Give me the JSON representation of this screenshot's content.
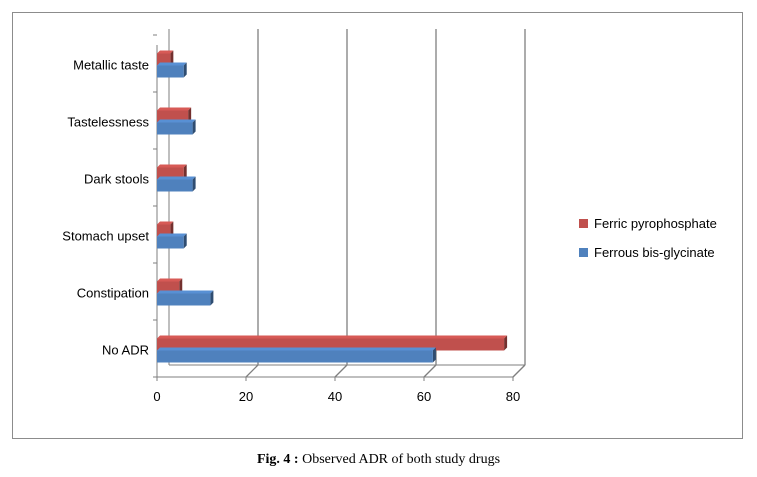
{
  "chart_data": {
    "type": "bar",
    "orientation": "horizontal",
    "style": "3d",
    "categories": [
      "Metallic taste",
      "Tastelessness",
      "Dark stools",
      "Stomach upset",
      "Constipation",
      "No ADR"
    ],
    "series": [
      {
        "name": "Ferric pyrophosphate",
        "color": "#c0504d",
        "values": [
          3,
          7,
          6,
          3,
          5,
          78
        ]
      },
      {
        "name": "Ferrous bis-glycinate",
        "color": "#4f81bd",
        "values": [
          6,
          8,
          8,
          6,
          12,
          62
        ]
      }
    ],
    "xlim": [
      0,
      80
    ],
    "xticks": [
      0,
      20,
      40,
      60,
      80
    ],
    "grid": "vertical",
    "legend_position": "right"
  },
  "caption": {
    "label": "Fig. 4 :",
    "text": " Observed ADR of both study drugs"
  },
  "colors": {
    "gridline": "#7f7f7f",
    "axis": "#7f7f7f"
  }
}
